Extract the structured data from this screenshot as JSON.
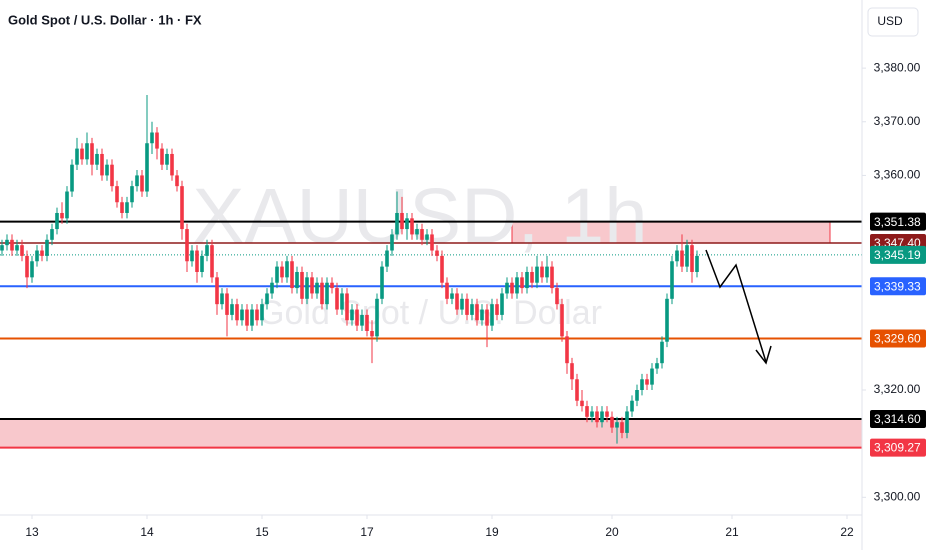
{
  "chart_data": {
    "type": "candlestick",
    "title": "Gold Spot / U.S. Dollar · 1h · FX",
    "currency": "USD",
    "watermark": "XAUUSD, 1h",
    "watermark_subtitle": "Gold Spot / U.S. Dollar",
    "up_color": "#089981",
    "down_color": "#f23645",
    "ylim": [
      3296.7,
      3392.7
    ],
    "yticks": [
      {
        "value": 3380,
        "label": "3,380.00"
      },
      {
        "value": 3370,
        "label": "3,370.00"
      },
      {
        "value": 3360,
        "label": "3,360.00"
      },
      {
        "value": 3320,
        "label": "3,320.00"
      },
      {
        "value": 3300,
        "label": "3,300.00"
      }
    ],
    "xlim": [
      -0.4,
      172
    ],
    "xticks": [
      {
        "value": 6,
        "label": "13"
      },
      {
        "value": 29,
        "label": "14"
      },
      {
        "value": 52,
        "label": "15"
      },
      {
        "value": 73,
        "label": "17"
      },
      {
        "value": 98,
        "label": "19"
      },
      {
        "value": 122,
        "label": "20"
      },
      {
        "value": 146,
        "label": "21"
      },
      {
        "value": 169,
        "label": "22"
      }
    ],
    "levels": [
      {
        "value": 3351.38,
        "label": "3,351.38",
        "color": "#000000",
        "line_width": 2,
        "style": "solid"
      },
      {
        "value": 3347.4,
        "label": "3,347.40",
        "color": "#8e1b1b",
        "line_width": 1.5,
        "style": "solid"
      },
      {
        "value": 3345.19,
        "label": "3,345.19",
        "color": "#089981",
        "line_width": 1,
        "style": "dotted"
      },
      {
        "value": 3339.33,
        "label": "3,339.33",
        "color": "#2962ff",
        "line_width": 2,
        "style": "solid"
      },
      {
        "value": 3329.6,
        "label": "3,329.60",
        "color": "#e65100",
        "line_width": 2,
        "style": "solid"
      },
      {
        "value": 3314.6,
        "label": "3,314.60",
        "color": "#000000",
        "line_width": 2,
        "style": "solid"
      },
      {
        "value": 3309.27,
        "label": "3,309.27",
        "color": "#f23645",
        "line_width": 2,
        "style": "solid"
      }
    ],
    "ohlc": [
      [
        3346,
        3348,
        3345,
        3347
      ],
      [
        3347,
        3349,
        3346,
        3348
      ],
      [
        3348,
        3349,
        3345,
        3346
      ],
      [
        3346,
        3348,
        3345,
        3347
      ],
      [
        3347,
        3348,
        3344,
        3345
      ],
      [
        3345,
        3346,
        3339,
        3341
      ],
      [
        3341,
        3345,
        3340,
        3344
      ],
      [
        3344,
        3347,
        3343,
        3346
      ],
      [
        3346,
        3347,
        3344,
        3345
      ],
      [
        3345,
        3349,
        3344,
        3348
      ],
      [
        3348,
        3351,
        3347,
        3350
      ],
      [
        3350,
        3354,
        3349,
        3353
      ],
      [
        3353,
        3355,
        3351,
        3352
      ],
      [
        3352,
        3358,
        3351,
        3357
      ],
      [
        3357,
        3363,
        3356,
        3362
      ],
      [
        3362,
        3367,
        3361,
        3365
      ],
      [
        3365,
        3366,
        3362,
        3363
      ],
      [
        3363,
        3368,
        3362,
        3366
      ],
      [
        3366,
        3367,
        3360,
        3362
      ],
      [
        3362,
        3365,
        3361,
        3364
      ],
      [
        3364,
        3365,
        3359,
        3360
      ],
      [
        3360,
        3363,
        3359,
        3362
      ],
      [
        3362,
        3363,
        3357,
        3358
      ],
      [
        3358,
        3359,
        3354,
        3355
      ],
      [
        3355,
        3356,
        3352,
        3353
      ],
      [
        3353,
        3356,
        3352,
        3355
      ],
      [
        3355,
        3359,
        3354,
        3358
      ],
      [
        3358,
        3361,
        3357,
        3360
      ],
      [
        3360,
        3361,
        3356,
        3357
      ],
      [
        3357,
        3375,
        3356,
        3366
      ],
      [
        3366,
        3370,
        3364,
        3368
      ],
      [
        3368,
        3369,
        3363,
        3365
      ],
      [
        3365,
        3366,
        3361,
        3362
      ],
      [
        3362,
        3365,
        3361,
        3364
      ],
      [
        3364,
        3365,
        3359,
        3360
      ],
      [
        3360,
        3361,
        3357,
        3358
      ],
      [
        3358,
        3359,
        3348,
        3350
      ],
      [
        3350,
        3351,
        3342,
        3344
      ],
      [
        3344,
        3347,
        3343,
        3346
      ],
      [
        3346,
        3347,
        3340,
        3342
      ],
      [
        3342,
        3346,
        3341,
        3345
      ],
      [
        3345,
        3348,
        3344,
        3347
      ],
      [
        3347,
        3348,
        3340,
        3341
      ],
      [
        3341,
        3342,
        3334,
        3336
      ],
      [
        3336,
        3339,
        3335,
        3338
      ],
      [
        3338,
        3339,
        3330,
        3334
      ],
      [
        3334,
        3337,
        3333,
        3336
      ],
      [
        3336,
        3337,
        3332,
        3333
      ],
      [
        3333,
        3336,
        3332,
        3335
      ],
      [
        3335,
        3336,
        3331,
        3332
      ],
      [
        3332,
        3336,
        3331,
        3335
      ],
      [
        3335,
        3336,
        3332,
        3333
      ],
      [
        3333,
        3337,
        3332,
        3336
      ],
      [
        3336,
        3339,
        3335,
        3338
      ],
      [
        3338,
        3341,
        3337,
        3340
      ],
      [
        3340,
        3344,
        3339,
        3343
      ],
      [
        3343,
        3344,
        3340,
        3341
      ],
      [
        3341,
        3345,
        3340,
        3344
      ],
      [
        3344,
        3345,
        3338,
        3339
      ],
      [
        3339,
        3343,
        3338,
        3342
      ],
      [
        3342,
        3343,
        3336,
        3337
      ],
      [
        3337,
        3342,
        3336,
        3341
      ],
      [
        3341,
        3342,
        3337,
        3338
      ],
      [
        3338,
        3341,
        3337,
        3340
      ],
      [
        3340,
        3341,
        3335,
        3336
      ],
      [
        3336,
        3341,
        3335,
        3340
      ],
      [
        3340,
        3341,
        3338,
        3339
      ],
      [
        3339,
        3340,
        3334,
        3335
      ],
      [
        3335,
        3339,
        3334,
        3338
      ],
      [
        3338,
        3339,
        3332,
        3333
      ],
      [
        3333,
        3336,
        3332,
        3335
      ],
      [
        3335,
        3336,
        3331,
        3332
      ],
      [
        3332,
        3335,
        3331,
        3334
      ],
      [
        3334,
        3335,
        3330,
        3331
      ],
      [
        3331,
        3333,
        3325,
        3330
      ],
      [
        3330,
        3338,
        3329,
        3337
      ],
      [
        3337,
        3344,
        3336,
        3343
      ],
      [
        3343,
        3347,
        3342,
        3346
      ],
      [
        3346,
        3350,
        3345,
        3349
      ],
      [
        3349,
        3357,
        3348,
        3353
      ],
      [
        3353,
        3356,
        3349,
        3350
      ],
      [
        3350,
        3353,
        3348,
        3352
      ],
      [
        3352,
        3353,
        3348,
        3349
      ],
      [
        3349,
        3351,
        3348,
        3350
      ],
      [
        3350,
        3351,
        3347,
        3348
      ],
      [
        3348,
        3350,
        3347,
        3349
      ],
      [
        3349,
        3350,
        3345,
        3346
      ],
      [
        3346,
        3347,
        3344,
        3345
      ],
      [
        3345,
        3346,
        3339,
        3340
      ],
      [
        3340,
        3341,
        3336,
        3337
      ],
      [
        3337,
        3339,
        3336,
        3338
      ],
      [
        3338,
        3339,
        3334,
        3335
      ],
      [
        3335,
        3338,
        3334,
        3337
      ],
      [
        3337,
        3338,
        3333,
        3334
      ],
      [
        3334,
        3337,
        3333,
        3336
      ],
      [
        3336,
        3337,
        3332,
        3333
      ],
      [
        3333,
        3336,
        3332,
        3335
      ],
      [
        3335,
        3336,
        3328,
        3332
      ],
      [
        3332,
        3337,
        3331,
        3336
      ],
      [
        3336,
        3337,
        3333,
        3334
      ],
      [
        3334,
        3339,
        3333,
        3338
      ],
      [
        3338,
        3341,
        3337,
        3340
      ],
      [
        3340,
        3341,
        3337,
        3338
      ],
      [
        3338,
        3342,
        3337,
        3341
      ],
      [
        3341,
        3342,
        3338,
        3339
      ],
      [
        3339,
        3343,
        3338,
        3342
      ],
      [
        3342,
        3343,
        3339,
        3340
      ],
      [
        3340,
        3345,
        3339,
        3343
      ],
      [
        3343,
        3344,
        3340,
        3341
      ],
      [
        3341,
        3345,
        3340,
        3343
      ],
      [
        3343,
        3344,
        3338,
        3339
      ],
      [
        3339,
        3340,
        3335,
        3336
      ],
      [
        3336,
        3337,
        3329,
        3330
      ],
      [
        3330,
        3331,
        3323,
        3325
      ],
      [
        3325,
        3326,
        3320,
        3322
      ],
      [
        3322,
        3323,
        3317,
        3318
      ],
      [
        3318,
        3320,
        3316,
        3317
      ],
      [
        3317,
        3318,
        3314,
        3315
      ],
      [
        3315,
        3317,
        3314,
        3316
      ],
      [
        3316,
        3317,
        3313,
        3314
      ],
      [
        3314,
        3317,
        3313,
        3316
      ],
      [
        3316,
        3317,
        3314,
        3315
      ],
      [
        3315,
        3316,
        3312,
        3313
      ],
      [
        3313,
        3315,
        3310,
        3314
      ],
      [
        3314,
        3315,
        3311,
        3312
      ],
      [
        3312,
        3317,
        3311,
        3316
      ],
      [
        3316,
        3319,
        3315,
        3318
      ],
      [
        3318,
        3321,
        3317,
        3320
      ],
      [
        3320,
        3323,
        3319,
        3322
      ],
      [
        3322,
        3323,
        3320,
        3321
      ],
      [
        3321,
        3325,
        3320,
        3324
      ],
      [
        3324,
        3326,
        3323,
        3325
      ],
      [
        3325,
        3330,
        3324,
        3329
      ],
      [
        3329,
        3338,
        3328,
        3337
      ],
      [
        3337,
        3345,
        3336,
        3344
      ],
      [
        3344,
        3347,
        3343,
        3346
      ],
      [
        3346,
        3349,
        3342,
        3343
      ],
      [
        3343,
        3348,
        3342,
        3347
      ],
      [
        3347,
        3348,
        3340,
        3342
      ],
      [
        3342,
        3346,
        3341,
        3345
      ]
    ]
  }
}
